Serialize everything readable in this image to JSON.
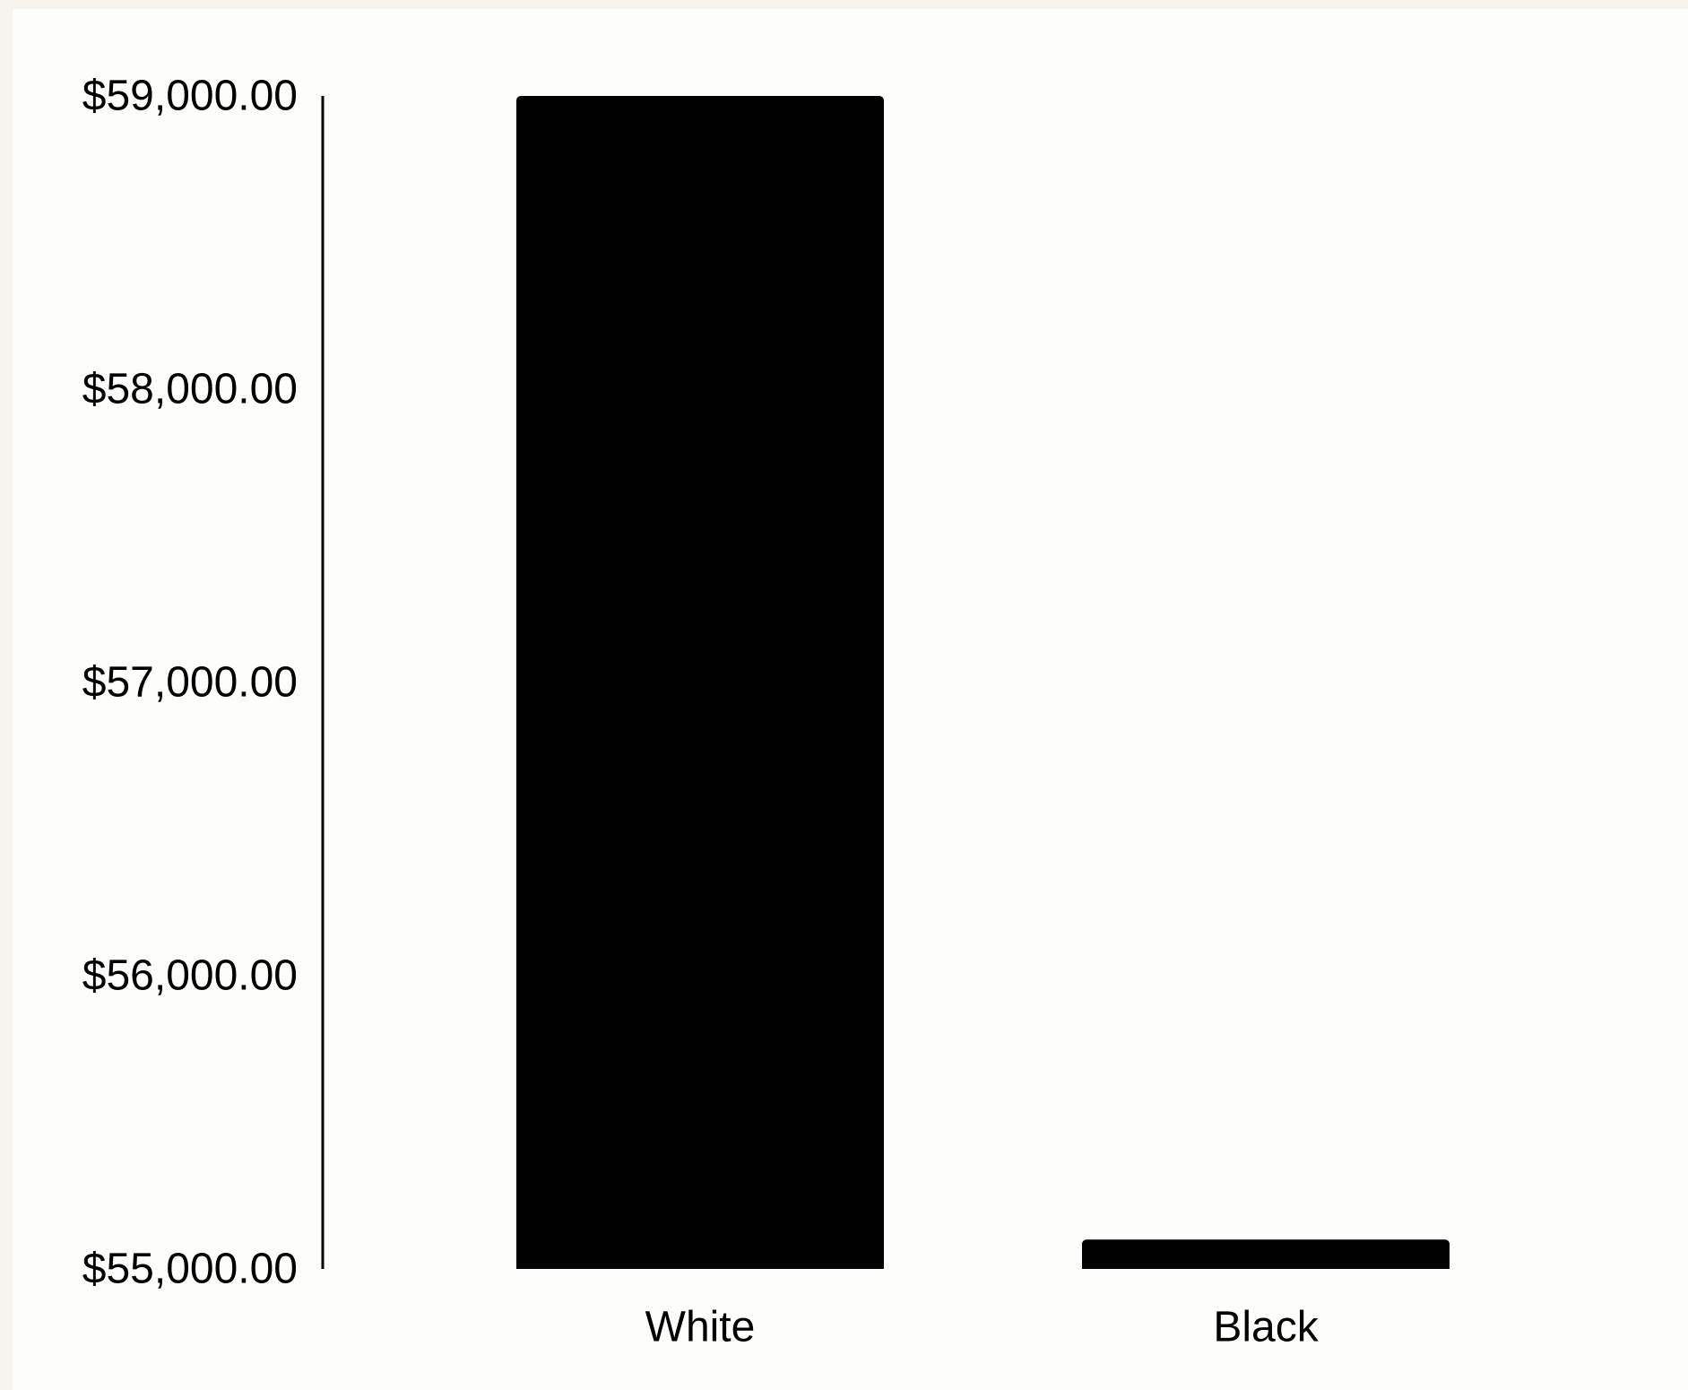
{
  "chart_data": {
    "type": "bar",
    "categories": [
      "White",
      "Black"
    ],
    "values": [
      59000,
      55100
    ],
    "title": "",
    "xlabel": "",
    "ylabel": "",
    "ylim": [
      55000,
      59000
    ],
    "y_ticks": [
      55000,
      56000,
      57000,
      58000,
      59000
    ],
    "y_tick_labels": [
      "$55,000.00",
      "$56,000.00",
      "$57,000.00",
      "$58,000.00",
      "$59,000.00"
    ],
    "grid": false,
    "legend": "none",
    "colors": {
      "bar": "#000000",
      "axis": "#000000",
      "background": "#fdfdfb",
      "outer_background": "#f7f4ef"
    }
  }
}
